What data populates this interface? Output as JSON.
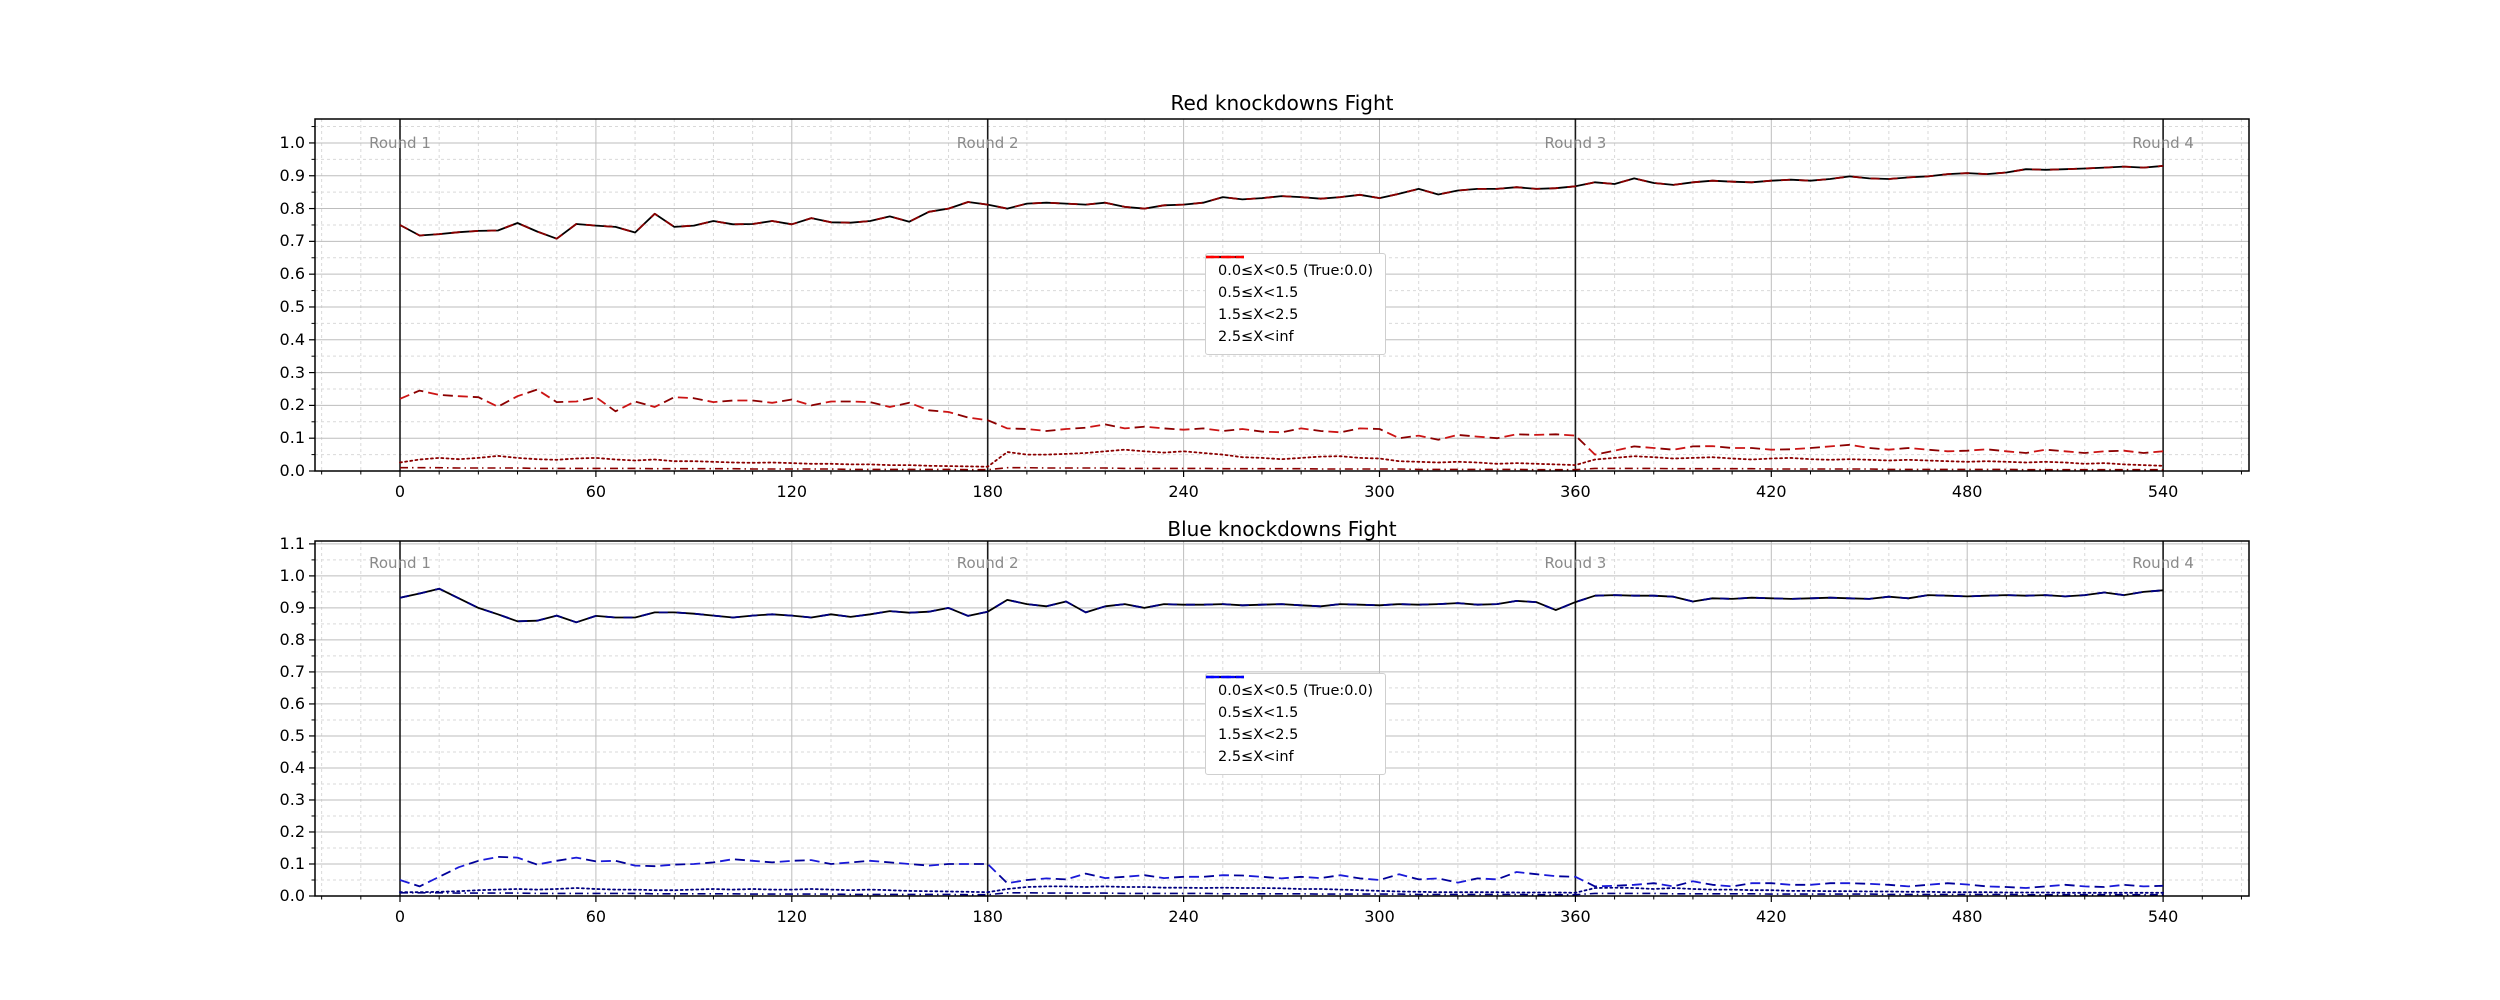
{
  "figure": {
    "background": "#ffffff"
  },
  "chart_data": [
    {
      "type": "line",
      "title": "Red knockdowns Fight",
      "xlabel": "",
      "ylabel": "",
      "xlim": [
        -26,
        566
      ],
      "ylim": [
        0,
        1.073
      ],
      "x_ticks": [
        0,
        60,
        120,
        180,
        240,
        300,
        360,
        420,
        480,
        540
      ],
      "x_tick_labels": [
        "0",
        "60",
        "120",
        "180",
        "240",
        "300",
        "360",
        "420",
        "480",
        "540"
      ],
      "y_ticks": [
        0.0,
        0.1,
        0.2,
        0.3,
        0.4,
        0.5,
        0.6,
        0.7,
        0.8,
        0.9,
        1.0
      ],
      "y_tick_labels": [
        "0.0",
        "0.1",
        "0.2",
        "0.3",
        "0.4",
        "0.5",
        "0.6",
        "0.7",
        "0.8",
        "0.9",
        "1.0"
      ],
      "minor_x_step": 12,
      "minor_y_step": 0.05,
      "grid": {
        "major_color": "#bdbdbd",
        "minor_color": "#d9d9d9"
      },
      "rounds": [
        {
          "x": 0,
          "label": "Round 1"
        },
        {
          "x": 180,
          "label": "Round 2"
        },
        {
          "x": 360,
          "label": "Round 3"
        },
        {
          "x": 540,
          "label": "Round 4"
        }
      ],
      "round_line_color": "#1a1a1a",
      "round_label_color": "#8a8a8a",
      "x_start": 0,
      "x_step": 6,
      "legend": {
        "position": "center",
        "items": [
          {
            "label": "0.0≤X<0.5 (True:0.0)",
            "color": "#000000",
            "linestyle": "solid"
          },
          {
            "label": "0.5≤X<1.5",
            "color": "#ff0000",
            "linestyle": "dashed"
          },
          {
            "label": "1.5≤X<2.5",
            "color": "#ff0000",
            "linestyle": "dotted"
          },
          {
            "label": "2.5≤X<inf",
            "color": "#ff0000",
            "linestyle": "dashdot"
          }
        ]
      },
      "series": [
        {
          "name": "0.0≤X<0.5 (True:0.0)",
          "linestyle": "solid",
          "color": "#000000",
          "overlay_color": "#8b0000",
          "values": [
            0.75,
            0.718,
            0.722,
            0.728,
            0.732,
            0.733,
            0.756,
            0.73,
            0.708,
            0.753,
            0.748,
            0.744,
            0.727,
            0.784,
            0.744,
            0.748,
            0.762,
            0.752,
            0.753,
            0.762,
            0.752,
            0.771,
            0.758,
            0.757,
            0.762,
            0.776,
            0.76,
            0.79,
            0.8,
            0.82,
            0.812,
            0.8,
            0.815,
            0.818,
            0.815,
            0.812,
            0.818,
            0.805,
            0.8,
            0.81,
            0.812,
            0.818,
            0.835,
            0.828,
            0.832,
            0.838,
            0.835,
            0.83,
            0.835,
            0.842,
            0.832,
            0.845,
            0.86,
            0.843,
            0.855,
            0.86,
            0.86,
            0.865,
            0.86,
            0.862,
            0.868,
            0.88,
            0.875,
            0.892,
            0.878,
            0.872,
            0.88,
            0.885,
            0.882,
            0.88,
            0.885,
            0.888,
            0.885,
            0.89,
            0.898,
            0.892,
            0.89,
            0.895,
            0.898,
            0.905,
            0.908,
            0.905,
            0.91,
            0.92,
            0.918,
            0.92,
            0.922,
            0.925,
            0.928,
            0.925,
            0.93
          ]
        },
        {
          "name": "0.5≤X<1.5",
          "linestyle": "dashed",
          "color": "#8b0000",
          "alt_color": "#cc1414",
          "values": [
            0.22,
            0.245,
            0.232,
            0.228,
            0.225,
            0.196,
            0.228,
            0.248,
            0.21,
            0.212,
            0.225,
            0.182,
            0.212,
            0.195,
            0.225,
            0.222,
            0.21,
            0.215,
            0.215,
            0.208,
            0.218,
            0.2,
            0.212,
            0.212,
            0.21,
            0.195,
            0.208,
            0.185,
            0.18,
            0.163,
            0.155,
            0.13,
            0.128,
            0.122,
            0.128,
            0.132,
            0.142,
            0.13,
            0.135,
            0.13,
            0.126,
            0.13,
            0.122,
            0.128,
            0.12,
            0.118,
            0.13,
            0.122,
            0.118,
            0.13,
            0.128,
            0.1,
            0.108,
            0.095,
            0.11,
            0.105,
            0.1,
            0.112,
            0.11,
            0.112,
            0.108,
            0.05,
            0.062,
            0.075,
            0.07,
            0.065,
            0.075,
            0.076,
            0.07,
            0.07,
            0.065,
            0.066,
            0.07,
            0.075,
            0.08,
            0.07,
            0.065,
            0.07,
            0.065,
            0.06,
            0.062,
            0.066,
            0.06,
            0.055,
            0.065,
            0.06,
            0.055,
            0.06,
            0.062,
            0.055,
            0.06
          ]
        },
        {
          "name": "1.5≤X<2.5",
          "linestyle": "dotted",
          "color": "#8b0000",
          "values": [
            0.026,
            0.035,
            0.04,
            0.036,
            0.04,
            0.046,
            0.04,
            0.036,
            0.034,
            0.038,
            0.04,
            0.035,
            0.032,
            0.035,
            0.03,
            0.03,
            0.028,
            0.026,
            0.025,
            0.026,
            0.024,
            0.022,
            0.022,
            0.02,
            0.02,
            0.018,
            0.018,
            0.016,
            0.015,
            0.014,
            0.013,
            0.058,
            0.05,
            0.05,
            0.052,
            0.055,
            0.06,
            0.065,
            0.06,
            0.056,
            0.06,
            0.055,
            0.05,
            0.042,
            0.04,
            0.036,
            0.04,
            0.044,
            0.045,
            0.04,
            0.038,
            0.03,
            0.028,
            0.026,
            0.028,
            0.026,
            0.022,
            0.024,
            0.022,
            0.02,
            0.018,
            0.035,
            0.04,
            0.045,
            0.042,
            0.038,
            0.04,
            0.042,
            0.038,
            0.035,
            0.038,
            0.04,
            0.036,
            0.034,
            0.036,
            0.034,
            0.032,
            0.034,
            0.032,
            0.03,
            0.028,
            0.03,
            0.028,
            0.026,
            0.028,
            0.026,
            0.022,
            0.024,
            0.02,
            0.018,
            0.016
          ]
        },
        {
          "name": "2.5≤X<inf",
          "linestyle": "dashdot",
          "color": "#8b0000",
          "values": [
            0.01,
            0.01,
            0.01,
            0.009,
            0.009,
            0.009,
            0.009,
            0.008,
            0.008,
            0.008,
            0.008,
            0.008,
            0.008,
            0.007,
            0.007,
            0.007,
            0.007,
            0.007,
            0.006,
            0.006,
            0.006,
            0.006,
            0.006,
            0.005,
            0.005,
            0.005,
            0.005,
            0.005,
            0.005,
            0.004,
            0.004,
            0.01,
            0.01,
            0.009,
            0.009,
            0.009,
            0.009,
            0.008,
            0.008,
            0.008,
            0.008,
            0.008,
            0.007,
            0.007,
            0.007,
            0.007,
            0.007,
            0.006,
            0.006,
            0.006,
            0.006,
            0.006,
            0.005,
            0.005,
            0.005,
            0.005,
            0.005,
            0.005,
            0.004,
            0.004,
            0.004,
            0.008,
            0.008,
            0.008,
            0.008,
            0.007,
            0.007,
            0.007,
            0.007,
            0.007,
            0.006,
            0.006,
            0.006,
            0.006,
            0.006,
            0.006,
            0.005,
            0.005,
            0.005,
            0.005,
            0.005,
            0.005,
            0.005,
            0.004,
            0.004,
            0.004,
            0.004,
            0.004,
            0.004,
            0.004,
            0.004
          ]
        }
      ]
    },
    {
      "type": "line",
      "title": "Blue knockdowns Fight",
      "xlabel": "",
      "ylabel": "",
      "xlim": [
        -26,
        566
      ],
      "ylim": [
        0,
        1.109
      ],
      "x_ticks": [
        0,
        60,
        120,
        180,
        240,
        300,
        360,
        420,
        480,
        540
      ],
      "x_tick_labels": [
        "0",
        "60",
        "120",
        "180",
        "240",
        "300",
        "360",
        "420",
        "480",
        "540"
      ],
      "y_ticks": [
        0.0,
        0.1,
        0.2,
        0.3,
        0.4,
        0.5,
        0.6,
        0.7,
        0.8,
        0.9,
        1.0,
        1.1
      ],
      "y_tick_labels": [
        "0.0",
        "0.1",
        "0.2",
        "0.3",
        "0.4",
        "0.5",
        "0.6",
        "0.7",
        "0.8",
        "0.9",
        "1.0",
        "1.1"
      ],
      "minor_x_step": 12,
      "minor_y_step": 0.05,
      "grid": {
        "major_color": "#bdbdbd",
        "minor_color": "#d9d9d9"
      },
      "rounds": [
        {
          "x": 0,
          "label": "Round 1"
        },
        {
          "x": 180,
          "label": "Round 2"
        },
        {
          "x": 360,
          "label": "Round 3"
        },
        {
          "x": 540,
          "label": "Round 4"
        }
      ],
      "round_line_color": "#1a1a1a",
      "round_label_color": "#8a8a8a",
      "x_start": 0,
      "x_step": 6,
      "legend": {
        "position": "center",
        "items": [
          {
            "label": "0.0≤X<0.5 (True:0.0)",
            "color": "#000000",
            "linestyle": "solid"
          },
          {
            "label": "0.5≤X<1.5",
            "color": "#0000ff",
            "linestyle": "dashed"
          },
          {
            "label": "1.5≤X<2.5",
            "color": "#0000ff",
            "linestyle": "dotted"
          },
          {
            "label": "2.5≤X<inf",
            "color": "#0000ff",
            "linestyle": "dashdot"
          }
        ]
      },
      "series": [
        {
          "name": "0.0≤X<0.5 (True:0.0)",
          "linestyle": "solid",
          "color": "#000000",
          "overlay_color": "#000080",
          "values": [
            0.932,
            0.945,
            0.96,
            0.93,
            0.9,
            0.88,
            0.858,
            0.86,
            0.876,
            0.855,
            0.875,
            0.87,
            0.87,
            0.886,
            0.886,
            0.882,
            0.876,
            0.87,
            0.876,
            0.88,
            0.876,
            0.87,
            0.88,
            0.872,
            0.88,
            0.89,
            0.885,
            0.888,
            0.9,
            0.875,
            0.888,
            0.925,
            0.912,
            0.905,
            0.92,
            0.886,
            0.905,
            0.912,
            0.9,
            0.912,
            0.91,
            0.91,
            0.912,
            0.908,
            0.91,
            0.912,
            0.908,
            0.905,
            0.912,
            0.91,
            0.908,
            0.912,
            0.91,
            0.912,
            0.915,
            0.91,
            0.912,
            0.922,
            0.918,
            0.893,
            0.918,
            0.938,
            0.94,
            0.938,
            0.938,
            0.935,
            0.92,
            0.93,
            0.928,
            0.932,
            0.93,
            0.928,
            0.93,
            0.932,
            0.93,
            0.928,
            0.935,
            0.93,
            0.94,
            0.938,
            0.936,
            0.938,
            0.94,
            0.938,
            0.94,
            0.936,
            0.94,
            0.948,
            0.94,
            0.95,
            0.955
          ]
        },
        {
          "name": "0.5≤X<1.5",
          "linestyle": "dashed",
          "color": "#000099",
          "alt_color": "#1a1ad9",
          "values": [
            0.05,
            0.03,
            0.06,
            0.09,
            0.11,
            0.122,
            0.12,
            0.098,
            0.11,
            0.12,
            0.108,
            0.11,
            0.095,
            0.093,
            0.098,
            0.1,
            0.105,
            0.115,
            0.11,
            0.105,
            0.11,
            0.112,
            0.1,
            0.105,
            0.11,
            0.105,
            0.1,
            0.095,
            0.1,
            0.1,
            0.1,
            0.04,
            0.05,
            0.055,
            0.052,
            0.07,
            0.056,
            0.06,
            0.065,
            0.056,
            0.06,
            0.06,
            0.065,
            0.064,
            0.06,
            0.055,
            0.06,
            0.056,
            0.065,
            0.055,
            0.05,
            0.068,
            0.052,
            0.055,
            0.042,
            0.055,
            0.052,
            0.075,
            0.068,
            0.062,
            0.06,
            0.03,
            0.032,
            0.035,
            0.04,
            0.03,
            0.046,
            0.035,
            0.03,
            0.04,
            0.04,
            0.035,
            0.035,
            0.04,
            0.04,
            0.038,
            0.035,
            0.03,
            0.035,
            0.04,
            0.036,
            0.03,
            0.028,
            0.025,
            0.03,
            0.035,
            0.03,
            0.028,
            0.035,
            0.03,
            0.032
          ]
        },
        {
          "name": "1.5≤X<2.5",
          "linestyle": "dotted",
          "color": "#000080",
          "values": [
            0.012,
            0.012,
            0.013,
            0.015,
            0.018,
            0.02,
            0.022,
            0.02,
            0.022,
            0.025,
            0.022,
            0.02,
            0.02,
            0.018,
            0.018,
            0.02,
            0.022,
            0.02,
            0.022,
            0.02,
            0.02,
            0.022,
            0.02,
            0.018,
            0.02,
            0.018,
            0.016,
            0.015,
            0.014,
            0.013,
            0.012,
            0.022,
            0.028,
            0.03,
            0.03,
            0.028,
            0.03,
            0.028,
            0.028,
            0.026,
            0.026,
            0.025,
            0.026,
            0.025,
            0.025,
            0.024,
            0.022,
            0.022,
            0.02,
            0.018,
            0.016,
            0.014,
            0.013,
            0.012,
            0.012,
            0.012,
            0.012,
            0.011,
            0.011,
            0.011,
            0.01,
            0.025,
            0.026,
            0.025,
            0.022,
            0.025,
            0.022,
            0.02,
            0.02,
            0.018,
            0.018,
            0.016,
            0.016,
            0.015,
            0.015,
            0.014,
            0.014,
            0.013,
            0.013,
            0.012,
            0.012,
            0.012,
            0.011,
            0.011,
            0.011,
            0.01,
            0.01,
            0.01,
            0.01,
            0.01,
            0.01
          ]
        },
        {
          "name": "2.5≤X<inf",
          "linestyle": "dashdot",
          "color": "#000080",
          "values": [
            0.01,
            0.01,
            0.01,
            0.009,
            0.009,
            0.009,
            0.009,
            0.008,
            0.008,
            0.008,
            0.008,
            0.008,
            0.008,
            0.007,
            0.007,
            0.007,
            0.007,
            0.007,
            0.006,
            0.006,
            0.006,
            0.006,
            0.006,
            0.005,
            0.005,
            0.005,
            0.005,
            0.005,
            0.005,
            0.004,
            0.004,
            0.01,
            0.01,
            0.009,
            0.009,
            0.009,
            0.009,
            0.008,
            0.008,
            0.008,
            0.008,
            0.008,
            0.007,
            0.007,
            0.007,
            0.007,
            0.007,
            0.006,
            0.006,
            0.006,
            0.006,
            0.006,
            0.005,
            0.005,
            0.005,
            0.005,
            0.005,
            0.005,
            0.004,
            0.004,
            0.004,
            0.008,
            0.008,
            0.008,
            0.008,
            0.007,
            0.007,
            0.007,
            0.007,
            0.007,
            0.006,
            0.006,
            0.006,
            0.006,
            0.006,
            0.006,
            0.005,
            0.005,
            0.005,
            0.005,
            0.005,
            0.005,
            0.005,
            0.004,
            0.004,
            0.004,
            0.004,
            0.004,
            0.004,
            0.004,
            0.004
          ]
        }
      ]
    }
  ]
}
